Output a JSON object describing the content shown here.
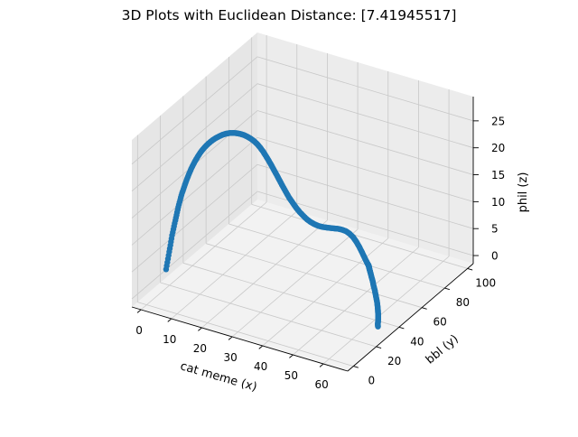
{
  "chart_data": {
    "type": "scatter",
    "projection": "3d",
    "title": "3D Plots with Euclidean Distance: [7.41945517]",
    "xlabel": "cat meme (x)",
    "ylabel": "bbl (y)",
    "zlabel": "phil (z)",
    "xticks": [
      "0",
      "10",
      "20",
      "30",
      "40",
      "50",
      "60"
    ],
    "yticks": [
      "0",
      "20",
      "40",
      "60",
      "80",
      "100"
    ],
    "zticks": [
      "0",
      "5",
      "10",
      "15",
      "20",
      "25"
    ],
    "xlim": [
      -3,
      68
    ],
    "ylim": [
      -5,
      105
    ],
    "zlim": [
      -1.5,
      29.5
    ],
    "grid": true,
    "series": [
      {
        "color": "#1f77b4",
        "marker": "o",
        "x": [
          0.0,
          1.0,
          1.9,
          2.9,
          3.8,
          4.7,
          5.7,
          6.6,
          7.5,
          8.4,
          9.3,
          10.1,
          11.0,
          11.8,
          12.6,
          13.4,
          14.2,
          14.9,
          15.6,
          16.3,
          17.0,
          17.6,
          18.2,
          18.8,
          19.3,
          19.8,
          20.3,
          20.7,
          21.1,
          21.5,
          21.8,
          22.2,
          22.6,
          23.0,
          23.5,
          24.0,
          24.6,
          25.3,
          26.0,
          26.8,
          27.6,
          28.5,
          29.4,
          30.3,
          31.2,
          32.2,
          33.2,
          34.2,
          35.2,
          36.1,
          37.1,
          38.0,
          38.9,
          39.8,
          40.6,
          41.4,
          42.1,
          42.8,
          43.4,
          44.0,
          44.5,
          45.0,
          45.4,
          45.8,
          46.3,
          46.9,
          47.6,
          48.4,
          49.3,
          50.3,
          51.4,
          52.5,
          53.6,
          54.8,
          55.9,
          57.0,
          58.1,
          59.1,
          60.1,
          61.0,
          61.9,
          62.7,
          63.5,
          64.2,
          65.0
        ],
        "y": [
          17.0,
          17.1,
          17.2,
          17.4,
          17.6,
          17.9,
          18.3,
          18.7,
          19.2,
          19.8,
          20.4,
          21.1,
          21.9,
          22.7,
          23.6,
          24.6,
          25.7,
          26.8,
          28.0,
          29.3,
          30.6,
          32.0,
          33.5,
          35.1,
          36.7,
          38.4,
          40.1,
          41.8,
          43.4,
          45.0,
          46.5,
          48.0,
          49.4,
          50.7,
          51.9,
          53.0,
          54.0,
          54.9,
          55.7,
          56.5,
          57.3,
          58.0,
          58.8,
          59.5,
          60.3,
          61.1,
          61.9,
          62.8,
          63.7,
          64.6,
          65.6,
          66.6,
          67.6,
          68.6,
          69.6,
          70.6,
          71.5,
          72.3,
          73.0,
          73.5,
          73.8,
          73.7,
          73.3,
          72.5,
          71.3,
          69.8,
          68.1,
          66.3,
          64.4,
          62.4,
          60.3,
          58.2,
          56.0,
          53.8,
          51.6,
          49.4,
          47.1,
          44.8,
          42.5,
          40.2,
          38.0,
          35.8,
          33.6,
          31.5,
          29.5
        ],
        "z": [
          2.0,
          5.4,
          8.6,
          11.5,
          14.1,
          16.4,
          18.4,
          20.1,
          21.6,
          22.9,
          24.0,
          24.9,
          25.7,
          26.3,
          26.8,
          27.2,
          27.5,
          27.7,
          27.8,
          27.8,
          27.7,
          27.5,
          27.2,
          26.8,
          26.3,
          25.7,
          25.0,
          24.2,
          23.3,
          22.3,
          21.3,
          20.2,
          19.1,
          18.0,
          16.9,
          15.8,
          14.7,
          13.6,
          12.6,
          11.7,
          10.8,
          10.0,
          9.3,
          8.7,
          8.2,
          7.8,
          7.5,
          7.3,
          7.2,
          7.1,
          7.0,
          6.9,
          6.7,
          6.4,
          5.9,
          5.2,
          4.3,
          3.3,
          2.3,
          1.4,
          0.7,
          0.3,
          0.2,
          0.3,
          0.5,
          0.8,
          1.0,
          1.2,
          1.3,
          1.3,
          1.2,
          1.1,
          0.9,
          0.7,
          0.5,
          0.3,
          0.2,
          0.1,
          0.0,
          0.0,
          0.0,
          0.0,
          0.0,
          0.0,
          0.0
        ]
      }
    ]
  }
}
